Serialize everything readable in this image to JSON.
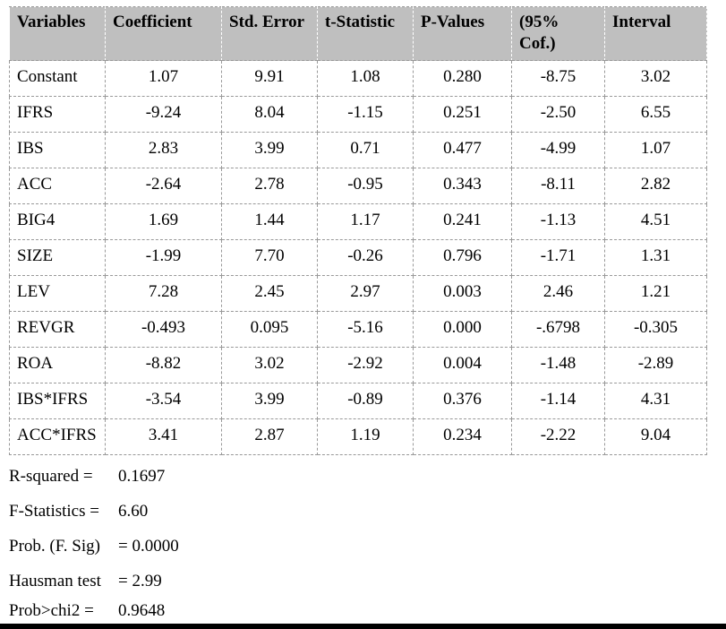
{
  "table": {
    "columns": [
      "Variables",
      "Coefficient",
      "Std. Error",
      "t-Statistic",
      "P-Values",
      "(95% Cof.)",
      "Interval"
    ],
    "rows": [
      [
        "Constant",
        "1.07",
        "9.91",
        "1.08",
        "0.280",
        "-8.75",
        "3.02"
      ],
      [
        "IFRS",
        "-9.24",
        "8.04",
        "-1.15",
        "0.251",
        "-2.50",
        "6.55"
      ],
      [
        "IBS",
        "2.83",
        "3.99",
        "0.71",
        "0.477",
        "-4.99",
        "1.07"
      ],
      [
        "ACC",
        "-2.64",
        "2.78",
        "-0.95",
        "0.343",
        "-8.11",
        "2.82"
      ],
      [
        "BIG4",
        "1.69",
        "1.44",
        "1.17",
        "0.241",
        "-1.13",
        "4.51"
      ],
      [
        "SIZE",
        "-1.99",
        "7.70",
        "-0.26",
        "0.796",
        "-1.71",
        "1.31"
      ],
      [
        "LEV",
        "7.28",
        "2.45",
        "2.97",
        "0.003",
        "2.46",
        "1.21"
      ],
      [
        "REVGR",
        "-0.493",
        "0.095",
        "-5.16",
        "0.000",
        "-.6798",
        "-0.305"
      ],
      [
        "ROA",
        "-8.82",
        "3.02",
        "-2.92",
        "0.004",
        "-1.48",
        "-2.89"
      ],
      [
        "IBS*IFRS",
        "-3.54",
        "3.99",
        "-0.89",
        "0.376",
        "-1.14",
        "4.31"
      ],
      [
        "ACC*IFRS",
        "3.41",
        "2.87",
        "1.19",
        "0.234",
        "-2.22",
        "9.04"
      ]
    ]
  },
  "stats": [
    {
      "label": "R-squared =",
      "value": "0.1697"
    },
    {
      "label": "F-Statistics =",
      "value": "6.60"
    },
    {
      "label": "Prob. (F. Sig)",
      "value": "= 0.0000"
    },
    {
      "label": "Hausman test",
      "value": "= 2.99"
    },
    {
      "label": "Prob>chi2 =",
      "value": "0.9648"
    }
  ],
  "colors": {
    "header_bg": "#bfbfbf",
    "grid_border": "#999999",
    "header_grid_border": "#ffffff",
    "bottom_rule": "#000000"
  },
  "chart_data": {
    "type": "table",
    "columns": [
      "Variables",
      "Coefficient",
      "Std. Error",
      "t-Statistic",
      "P-Values",
      "(95% Cof.)",
      "Interval"
    ],
    "rows": [
      [
        "Constant",
        1.07,
        9.91,
        1.08,
        0.28,
        -8.75,
        3.02
      ],
      [
        "IFRS",
        -9.24,
        8.04,
        -1.15,
        0.251,
        -2.5,
        6.55
      ],
      [
        "IBS",
        2.83,
        3.99,
        0.71,
        0.477,
        -4.99,
        1.07
      ],
      [
        "ACC",
        -2.64,
        2.78,
        -0.95,
        0.343,
        -8.11,
        2.82
      ],
      [
        "BIG4",
        1.69,
        1.44,
        1.17,
        0.241,
        -1.13,
        4.51
      ],
      [
        "SIZE",
        -1.99,
        7.7,
        -0.26,
        0.796,
        -1.71,
        1.31
      ],
      [
        "LEV",
        7.28,
        2.45,
        2.97,
        0.003,
        2.46,
        1.21
      ],
      [
        "REVGR",
        -0.493,
        0.095,
        -5.16,
        0.0,
        -0.6798,
        -0.305
      ],
      [
        "ROA",
        -8.82,
        3.02,
        -2.92,
        0.004,
        -1.48,
        -2.89
      ],
      [
        "IBS*IFRS",
        -3.54,
        3.99,
        -0.89,
        0.376,
        -1.14,
        4.31
      ],
      [
        "ACC*IFRS",
        3.41,
        2.87,
        1.19,
        0.234,
        -2.22,
        9.04
      ]
    ],
    "footnotes": {
      "R-squared": 0.1697,
      "F-Statistics": 6.6,
      "Prob. (F. Sig)": 0.0,
      "Hausman test": 2.99,
      "Prob>chi2": 0.9648
    }
  }
}
